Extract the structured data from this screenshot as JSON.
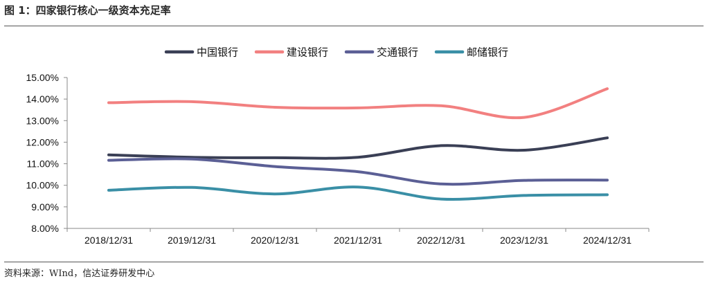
{
  "figure": {
    "title": "图 1：四家银行核心一级资本充足率",
    "source": "资料来源：WInd，信达证券研发中心"
  },
  "chart_data": {
    "type": "line",
    "x": [
      "2018/12/31",
      "2019/12/31",
      "2020/12/31",
      "2021/12/31",
      "2022/12/31",
      "2023/12/31",
      "2024/12/31"
    ],
    "ylim": [
      8.0,
      15.0
    ],
    "ytick_labels": [
      "15.00%",
      "14.00%",
      "13.00%",
      "12.00%",
      "11.00%",
      "10.00%",
      "9.00%",
      "8.00%"
    ],
    "ytick_values": [
      15,
      14,
      13,
      12,
      11,
      10,
      9,
      8
    ],
    "grid": false,
    "legend_position": "top",
    "series": [
      {
        "name": "中国银行",
        "color": "#3a3f55",
        "values": [
          11.41,
          11.3,
          11.28,
          11.3,
          11.84,
          11.63,
          12.2
        ]
      },
      {
        "name": "建设银行",
        "color": "#f28080",
        "values": [
          13.83,
          13.88,
          13.62,
          13.59,
          13.69,
          13.15,
          14.48
        ]
      },
      {
        "name": "交通银行",
        "color": "#5b5f95",
        "values": [
          11.16,
          11.22,
          10.87,
          10.63,
          10.06,
          10.23,
          10.24
        ]
      },
      {
        "name": "邮储银行",
        "color": "#3a8fa6",
        "values": [
          9.77,
          9.9,
          9.6,
          9.92,
          9.36,
          9.53,
          9.56
        ]
      }
    ]
  }
}
